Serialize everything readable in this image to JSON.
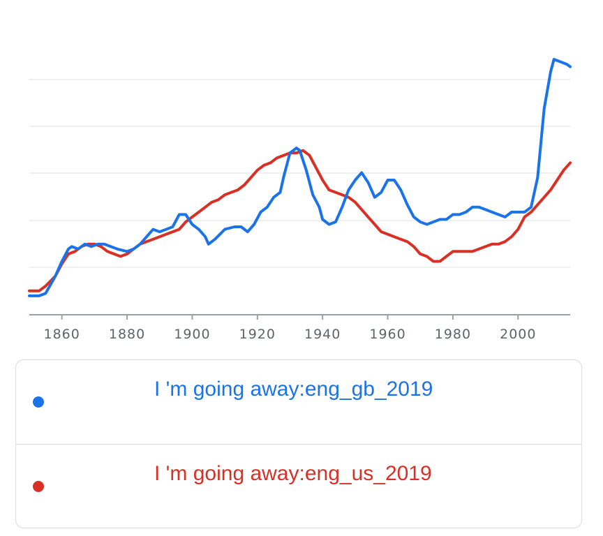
{
  "chart_data": {
    "type": "line",
    "xlim": [
      1850,
      2016
    ],
    "ylim": [
      0,
      100
    ],
    "x_ticks": [
      1860,
      1880,
      1900,
      1920,
      1940,
      1960,
      1980,
      2000
    ],
    "grid": true,
    "legend_position": "bottom",
    "series": [
      {
        "name": "I 'm going away:eng_gb_2019",
        "color": "#1a73e8",
        "points": [
          [
            1850,
            4
          ],
          [
            1853,
            4
          ],
          [
            1855,
            5
          ],
          [
            1858,
            12
          ],
          [
            1860,
            18
          ],
          [
            1862,
            23
          ],
          [
            1863,
            24
          ],
          [
            1865,
            23
          ],
          [
            1867,
            25
          ],
          [
            1869,
            24
          ],
          [
            1871,
            25
          ],
          [
            1873,
            25
          ],
          [
            1875,
            24
          ],
          [
            1877,
            23
          ],
          [
            1880,
            22
          ],
          [
            1882,
            23
          ],
          [
            1884,
            25
          ],
          [
            1886,
            28
          ],
          [
            1888,
            31
          ],
          [
            1890,
            30
          ],
          [
            1892,
            31
          ],
          [
            1894,
            32
          ],
          [
            1896,
            37
          ],
          [
            1898,
            37
          ],
          [
            1900,
            33
          ],
          [
            1902,
            31
          ],
          [
            1904,
            28
          ],
          [
            1905,
            25
          ],
          [
            1907,
            27
          ],
          [
            1910,
            31
          ],
          [
            1913,
            32
          ],
          [
            1915,
            32
          ],
          [
            1917,
            30
          ],
          [
            1919,
            33
          ],
          [
            1921,
            38
          ],
          [
            1923,
            40
          ],
          [
            1925,
            44
          ],
          [
            1927,
            46
          ],
          [
            1928,
            52
          ],
          [
            1930,
            62
          ],
          [
            1932,
            64
          ],
          [
            1933,
            63
          ],
          [
            1935,
            55
          ],
          [
            1937,
            45
          ],
          [
            1939,
            40
          ],
          [
            1940,
            35
          ],
          [
            1942,
            33
          ],
          [
            1944,
            34
          ],
          [
            1946,
            40
          ],
          [
            1948,
            47
          ],
          [
            1950,
            51
          ],
          [
            1952,
            54
          ],
          [
            1954,
            50
          ],
          [
            1956,
            44
          ],
          [
            1958,
            46
          ],
          [
            1960,
            51
          ],
          [
            1962,
            51
          ],
          [
            1964,
            47
          ],
          [
            1966,
            41
          ],
          [
            1968,
            36
          ],
          [
            1970,
            34
          ],
          [
            1972,
            33
          ],
          [
            1974,
            34
          ],
          [
            1976,
            35
          ],
          [
            1978,
            35
          ],
          [
            1980,
            37
          ],
          [
            1982,
            37
          ],
          [
            1984,
            38
          ],
          [
            1986,
            40
          ],
          [
            1988,
            40
          ],
          [
            1990,
            39
          ],
          [
            1992,
            38
          ],
          [
            1994,
            37
          ],
          [
            1996,
            36
          ],
          [
            1998,
            38
          ],
          [
            2000,
            38
          ],
          [
            2002,
            38
          ],
          [
            2004,
            40
          ],
          [
            2006,
            52
          ],
          [
            2008,
            80
          ],
          [
            2010,
            95
          ],
          [
            2011,
            100
          ],
          [
            2013,
            99
          ],
          [
            2015,
            98
          ],
          [
            2016,
            97
          ]
        ]
      },
      {
        "name": "I 'm going away:eng_us_2019",
        "color": "#d93025",
        "points": [
          [
            1850,
            6
          ],
          [
            1853,
            6
          ],
          [
            1855,
            8
          ],
          [
            1858,
            12
          ],
          [
            1860,
            17
          ],
          [
            1862,
            21
          ],
          [
            1864,
            22
          ],
          [
            1866,
            24
          ],
          [
            1868,
            25
          ],
          [
            1870,
            25
          ],
          [
            1872,
            24
          ],
          [
            1874,
            22
          ],
          [
            1876,
            21
          ],
          [
            1878,
            20
          ],
          [
            1880,
            21
          ],
          [
            1882,
            23
          ],
          [
            1884,
            25
          ],
          [
            1886,
            26
          ],
          [
            1888,
            27
          ],
          [
            1890,
            28
          ],
          [
            1892,
            29
          ],
          [
            1894,
            30
          ],
          [
            1896,
            31
          ],
          [
            1898,
            34
          ],
          [
            1900,
            36
          ],
          [
            1902,
            38
          ],
          [
            1904,
            40
          ],
          [
            1906,
            42
          ],
          [
            1908,
            43
          ],
          [
            1910,
            45
          ],
          [
            1912,
            46
          ],
          [
            1914,
            47
          ],
          [
            1916,
            49
          ],
          [
            1918,
            52
          ],
          [
            1920,
            55
          ],
          [
            1922,
            57
          ],
          [
            1924,
            58
          ],
          [
            1926,
            60
          ],
          [
            1928,
            61
          ],
          [
            1930,
            62
          ],
          [
            1932,
            62
          ],
          [
            1934,
            63
          ],
          [
            1936,
            61
          ],
          [
            1938,
            56
          ],
          [
            1940,
            51
          ],
          [
            1942,
            47
          ],
          [
            1944,
            46
          ],
          [
            1946,
            45
          ],
          [
            1948,
            44
          ],
          [
            1950,
            42
          ],
          [
            1952,
            39
          ],
          [
            1954,
            36
          ],
          [
            1956,
            33
          ],
          [
            1958,
            30
          ],
          [
            1960,
            29
          ],
          [
            1962,
            28
          ],
          [
            1964,
            27
          ],
          [
            1966,
            26
          ],
          [
            1968,
            24
          ],
          [
            1970,
            21
          ],
          [
            1972,
            20
          ],
          [
            1974,
            18
          ],
          [
            1976,
            18
          ],
          [
            1978,
            20
          ],
          [
            1980,
            22
          ],
          [
            1982,
            22
          ],
          [
            1984,
            22
          ],
          [
            1986,
            22
          ],
          [
            1988,
            23
          ],
          [
            1990,
            24
          ],
          [
            1992,
            25
          ],
          [
            1994,
            25
          ],
          [
            1996,
            26
          ],
          [
            1998,
            28
          ],
          [
            2000,
            31
          ],
          [
            2002,
            36
          ],
          [
            2004,
            38
          ],
          [
            2006,
            41
          ],
          [
            2008,
            44
          ],
          [
            2010,
            47
          ],
          [
            2012,
            51
          ],
          [
            2014,
            55
          ],
          [
            2016,
            58
          ]
        ]
      }
    ]
  }
}
